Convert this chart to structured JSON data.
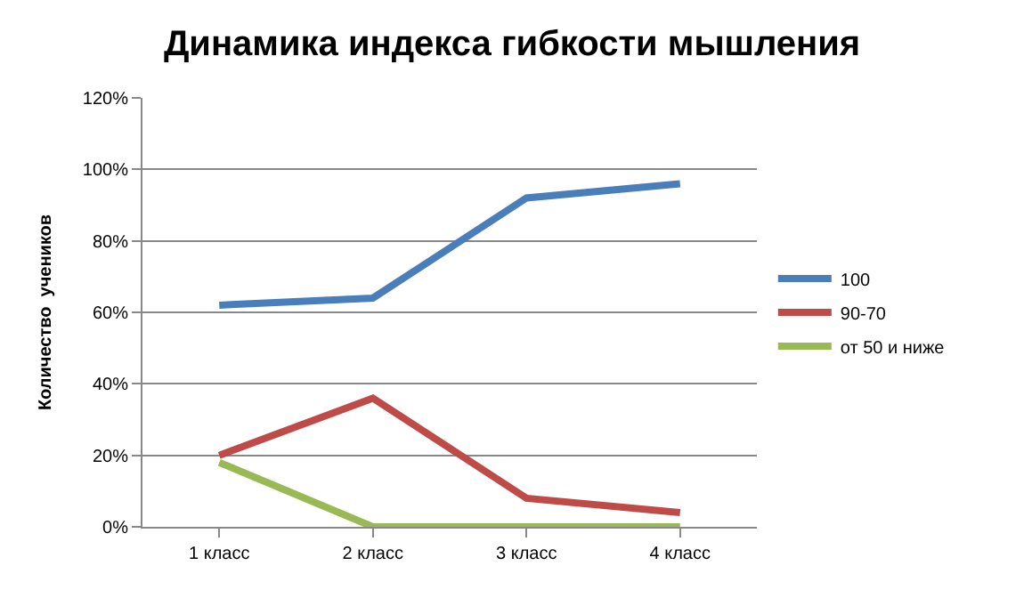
{
  "chart_data": {
    "type": "line",
    "title": "Динамика индекса гибкости мышления",
    "ylabel": "Количество  учеников",
    "categories": [
      "1 класс",
      "2 класс",
      "3 класс",
      "4 класс"
    ],
    "series": [
      {
        "name": "100",
        "color": "#4a7ebb",
        "values": [
          62,
          64,
          92,
          96
        ]
      },
      {
        "name": "90-70",
        "color": "#be4b48",
        "values": [
          20,
          36,
          8,
          4
        ]
      },
      {
        "name": "от 50 и ниже",
        "color": "#98b954",
        "values": [
          18,
          0,
          0,
          0
        ]
      }
    ],
    "ylim": [
      0,
      120
    ],
    "yticks": [
      {
        "value": 0,
        "label": "0%"
      },
      {
        "value": 20,
        "label": "20%"
      },
      {
        "value": 40,
        "label": "40%"
      },
      {
        "value": 60,
        "label": "60%"
      },
      {
        "value": 80,
        "label": "80%"
      },
      {
        "value": 100,
        "label": "100%"
      },
      {
        "value": 120,
        "label": "120%"
      }
    ],
    "grid": "y",
    "legend": "right",
    "marker": "none",
    "line_style": "solid"
  }
}
